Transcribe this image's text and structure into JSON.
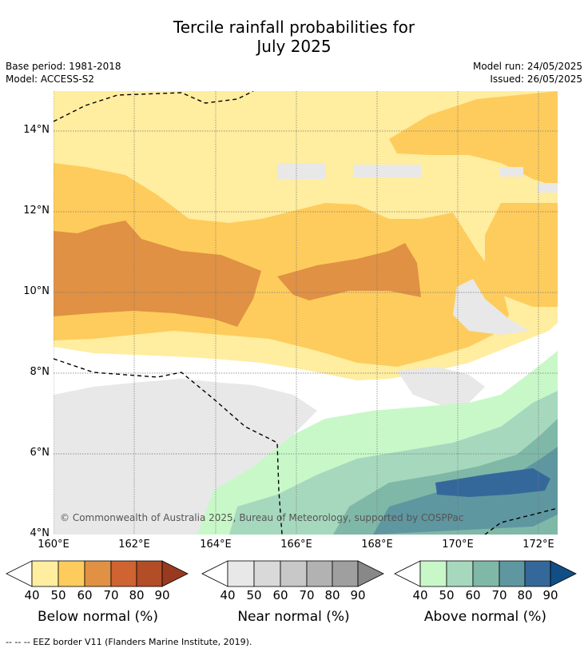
{
  "title_line1": "Tercile rainfall probabilities for",
  "title_line2": "July 2025",
  "meta": {
    "base_period": "Base period: 1981-2018",
    "model": "Model: ACCESS-S2",
    "model_run": "Model run: 24/05/2025",
    "issued": "Issued: 26/05/2025"
  },
  "map": {
    "lat_labels": [
      "14°N",
      "12°N",
      "10°N",
      "8°N",
      "6°N",
      "4°N"
    ],
    "lon_labels": [
      "160°E",
      "162°E",
      "164°E",
      "166°E",
      "168°E",
      "170°E",
      "172°E"
    ],
    "copyright": "© Commonwealth of Australia 2025, Bureau of Meteorology, supported by COSPPac",
    "colors": {
      "below": [
        "#ffeda0",
        "#fecc5c",
        "#e09144",
        "#cf6331",
        "#b24d27",
        "#993a20"
      ],
      "near": [
        "#e8e8e8",
        "#d9d9d9",
        "#c8c8c8",
        "#b2b2b2",
        "#9f9f9f",
        "#888888"
      ],
      "above": [
        "#c8f8c8",
        "#a6d8bd",
        "#80b8a8",
        "#5e97a0",
        "#35689a",
        "#124e86"
      ]
    }
  },
  "legends": [
    {
      "label": "Below normal (%)",
      "ticks": [
        "40",
        "50",
        "60",
        "70",
        "80",
        "90"
      ]
    },
    {
      "label": "Near normal (%)",
      "ticks": [
        "40",
        "50",
        "60",
        "70",
        "80",
        "90"
      ]
    },
    {
      "label": "Above normal (%)",
      "ticks": [
        "40",
        "50",
        "60",
        "70",
        "80",
        "90"
      ]
    }
  ],
  "footer": "--  --  -- EEZ border V11 (Flanders Marine Institute, 2019)."
}
